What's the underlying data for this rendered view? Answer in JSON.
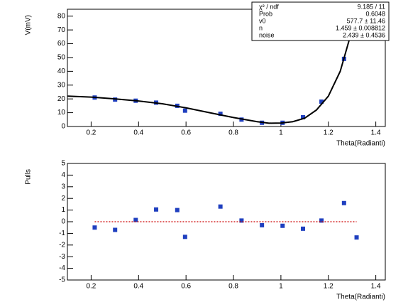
{
  "chart_data": [
    {
      "type": "scatter",
      "ylabel": "V(mV)",
      "xlabel": "Theta(Radianti)",
      "xlim": [
        0.1,
        1.44
      ],
      "ylim": [
        0,
        85
      ],
      "xticks": [
        0.2,
        0.4,
        0.6,
        0.8,
        1,
        1.2,
        1.4
      ],
      "yticks": [
        0,
        10,
        20,
        30,
        40,
        50,
        60,
        70,
        80
      ],
      "series": [
        {
          "style": "marker",
          "color": "#1f3fbf",
          "x": [
            0.215,
            0.301,
            0.388,
            0.474,
            0.563,
            0.596,
            0.745,
            0.834,
            0.92,
            1.007,
            1.093,
            1.171,
            1.266
          ],
          "values": [
            21,
            19.5,
            18.7,
            17.3,
            15,
            11.5,
            9.2,
            5,
            2.7,
            2.7,
            6.7,
            18,
            49
          ]
        },
        {
          "style": "line",
          "color": "#000000",
          "x": [
            0.1,
            0.2,
            0.3,
            0.4,
            0.5,
            0.6,
            0.7,
            0.8,
            0.9,
            0.95,
            1.0,
            1.05,
            1.1,
            1.15,
            1.2,
            1.25,
            1.3,
            1.32
          ],
          "values": [
            22,
            21.3,
            20,
            18.5,
            16.5,
            13.5,
            10,
            6.5,
            3.5,
            2.4,
            2.5,
            3.5,
            6,
            12,
            22,
            40,
            70,
            85
          ]
        }
      ],
      "stats": [
        [
          "χ² / ndf",
          "9.185 / 11"
        ],
        [
          "Prob",
          "0.6048"
        ],
        [
          "v0",
          "577.7 ± 11.46"
        ],
        [
          "n",
          "1.459 ± 0.008812"
        ],
        [
          "noise",
          "2.439 ± 0.4536"
        ]
      ]
    },
    {
      "type": "scatter",
      "ylabel": "Pulls",
      "xlabel": "Theta(Radianti)",
      "xlim": [
        0.1,
        1.44
      ],
      "ylim": [
        -5,
        5
      ],
      "xticks": [
        0.2,
        0.4,
        0.6,
        0.8,
        1,
        1.2,
        1.4
      ],
      "yticks": [
        -5,
        -4,
        -3,
        -2,
        -1,
        0,
        1,
        2,
        3,
        4,
        5
      ],
      "series": [
        {
          "style": "marker",
          "color": "#1f3fbf",
          "x": [
            0.215,
            0.301,
            0.388,
            0.474,
            0.563,
            0.596,
            0.745,
            0.834,
            0.92,
            1.007,
            1.093,
            1.171,
            1.266,
            1.319
          ],
          "values": [
            -0.5,
            -0.7,
            0.15,
            1.05,
            1.0,
            -1.3,
            1.3,
            0.1,
            -0.3,
            -0.35,
            -0.6,
            0.1,
            1.6,
            -1.35
          ]
        },
        {
          "style": "dotted",
          "color": "#cc0000",
          "x": [
            0.215,
            1.319
          ],
          "values": [
            0,
            0
          ]
        }
      ]
    }
  ]
}
